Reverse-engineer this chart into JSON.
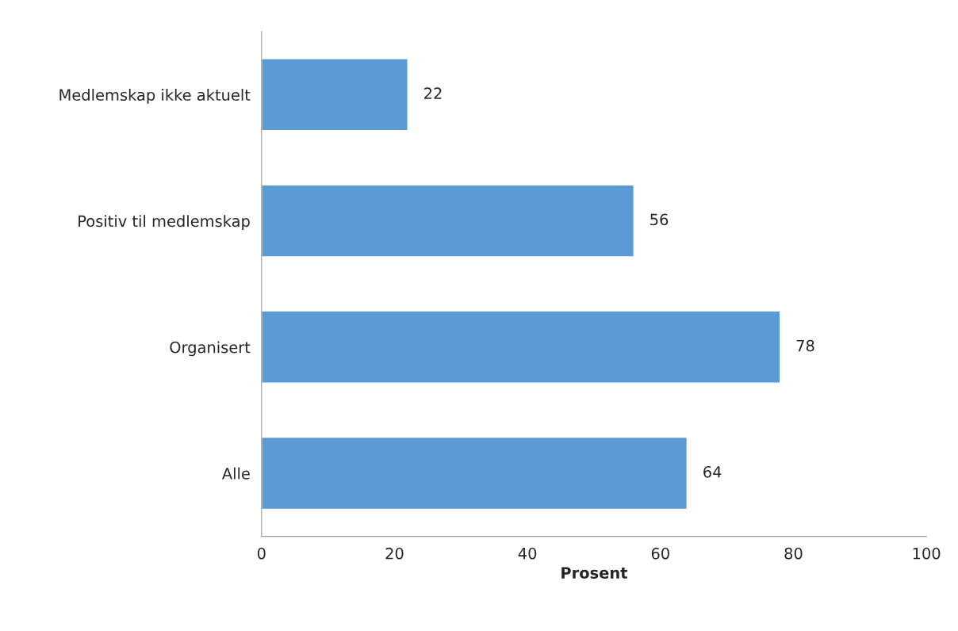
{
  "chart_data": {
    "type": "bar",
    "orientation": "horizontal",
    "xlabel": "Prosent",
    "categories": [
      "Medlemskap ikke aktuelt",
      "Positiv til medlemskap",
      "Organisert",
      "Alle"
    ],
    "values": [
      22,
      56,
      78,
      64
    ],
    "color": "#5b9bd5",
    "data_labels": true,
    "grid": false,
    "legend": false,
    "xlim": [
      0,
      100
    ],
    "xticks": [
      0,
      20,
      40,
      60,
      80,
      100
    ]
  }
}
